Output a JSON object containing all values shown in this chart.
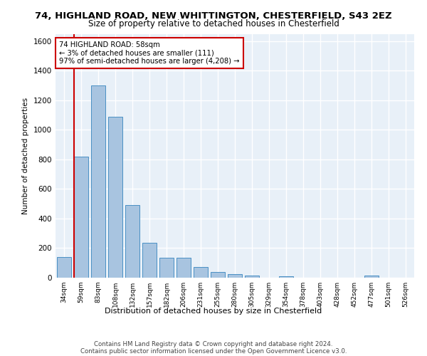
{
  "title1": "74, HIGHLAND ROAD, NEW WHITTINGTON, CHESTERFIELD, S43 2EZ",
  "title2": "Size of property relative to detached houses in Chesterfield",
  "xlabel": "Distribution of detached houses by size in Chesterfield",
  "ylabel": "Number of detached properties",
  "categories": [
    "34sqm",
    "59sqm",
    "83sqm",
    "108sqm",
    "132sqm",
    "157sqm",
    "182sqm",
    "206sqm",
    "231sqm",
    "255sqm",
    "280sqm",
    "305sqm",
    "329sqm",
    "354sqm",
    "378sqm",
    "403sqm",
    "428sqm",
    "452sqm",
    "477sqm",
    "501sqm",
    "526sqm"
  ],
  "values": [
    140,
    820,
    1300,
    1090,
    490,
    235,
    135,
    135,
    70,
    40,
    25,
    15,
    0,
    12,
    0,
    0,
    0,
    0,
    15,
    0,
    0
  ],
  "bar_color": "#a8c4e0",
  "bar_edge_color": "#4a90c4",
  "redline_index": 1,
  "ylim": [
    0,
    1650
  ],
  "annotation_text": "74 HIGHLAND ROAD: 58sqm\n← 3% of detached houses are smaller (111)\n97% of semi-detached houses are larger (4,208) →",
  "annotation_box_color": "#ffffff",
  "annotation_box_edge_color": "#cc0000",
  "footer": "Contains HM Land Registry data © Crown copyright and database right 2024.\nContains public sector information licensed under the Open Government Licence v3.0.",
  "background_color": "#e8f0f8",
  "grid_color": "#ffffff"
}
